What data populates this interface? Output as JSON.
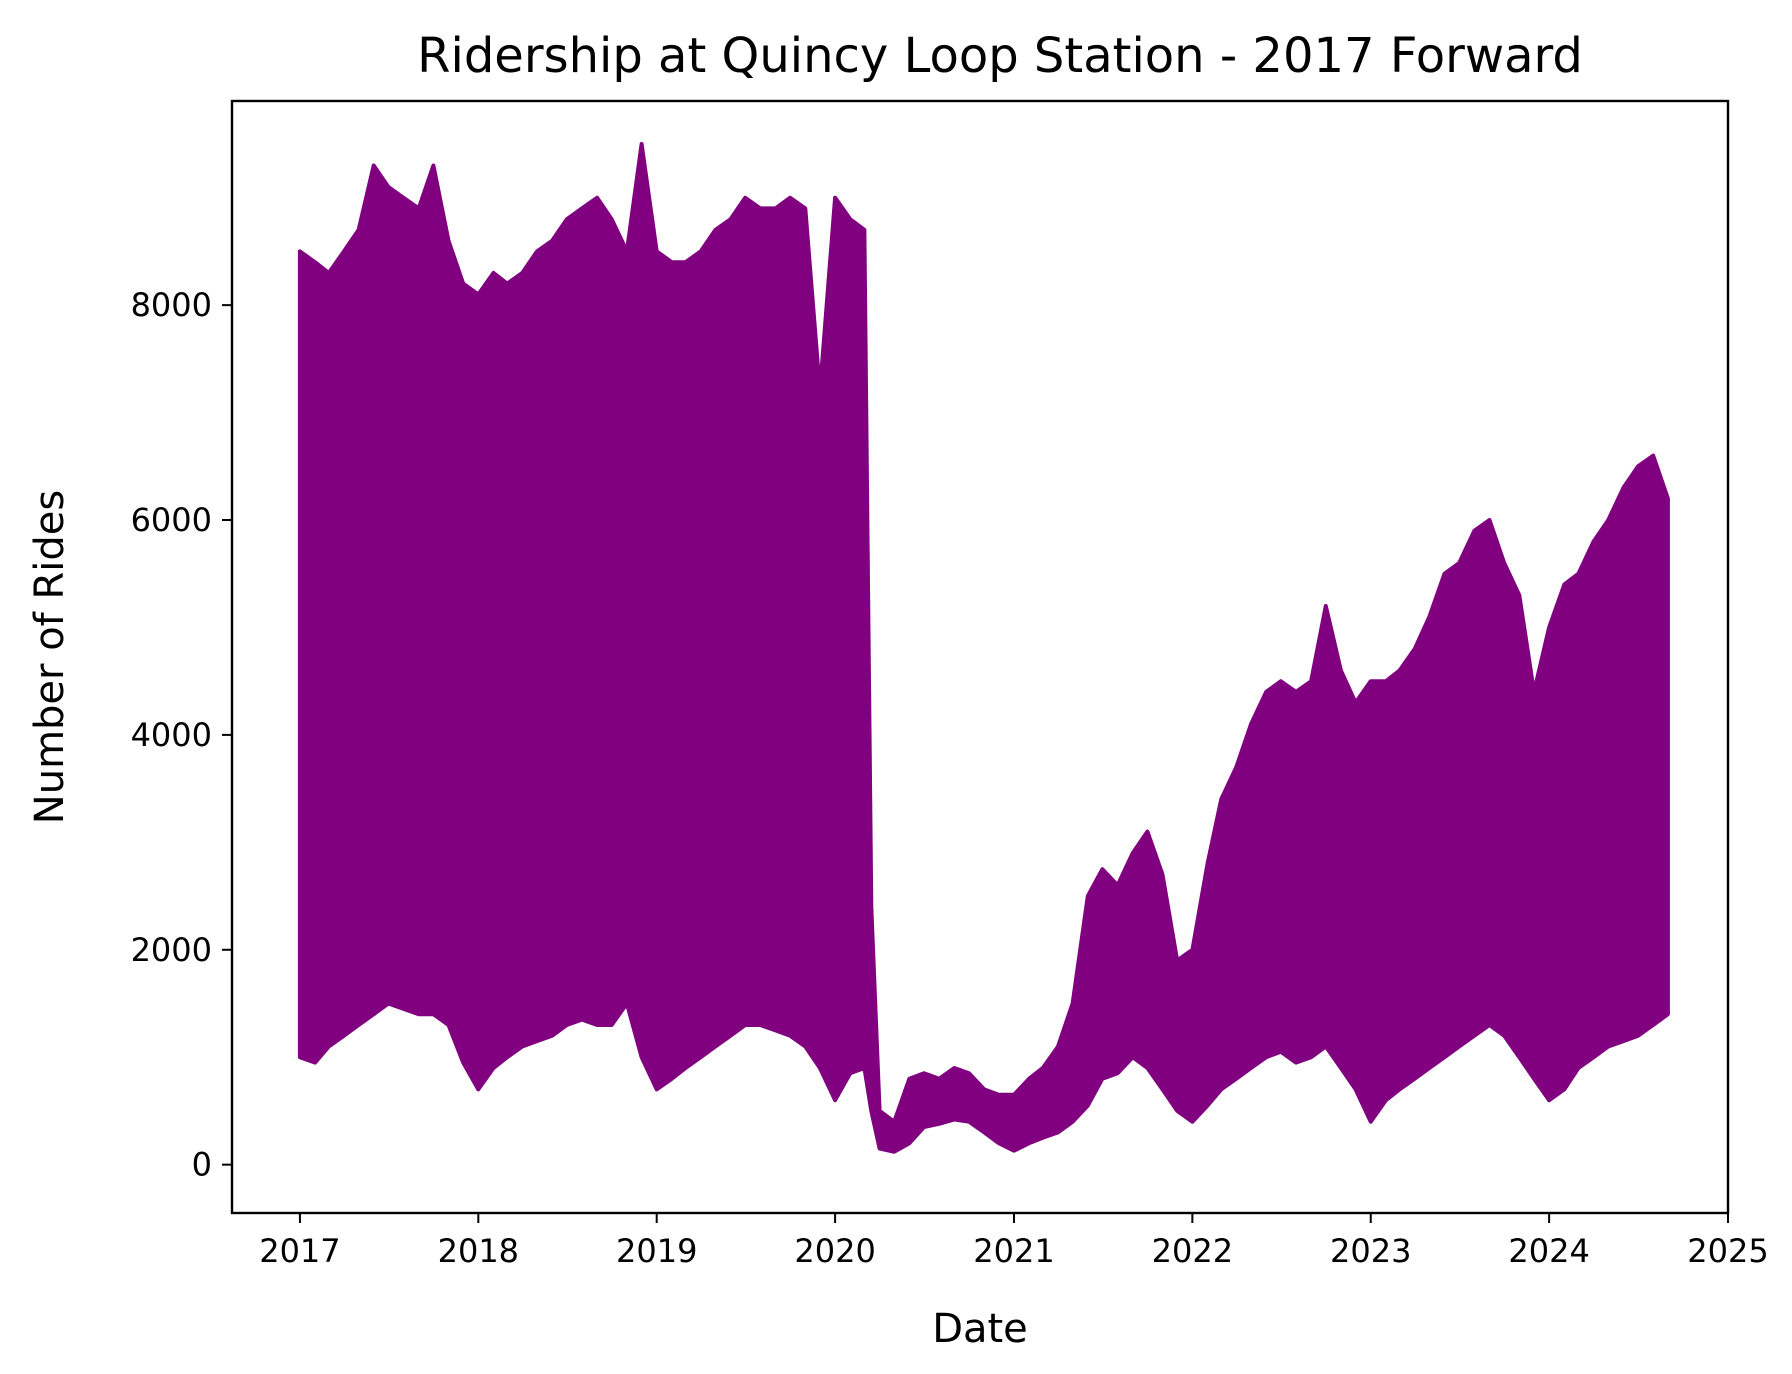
{
  "chart_data": {
    "type": "line",
    "title": "Ridership at Quincy Loop Station - 2017 Forward",
    "xlabel": "Date",
    "ylabel": "Number of Rides",
    "x_ticks": [
      "2017",
      "2018",
      "2019",
      "2020",
      "2021",
      "2022",
      "2023",
      "2024",
      "2025"
    ],
    "y_ticks": [
      0,
      2000,
      4000,
      6000,
      8000
    ],
    "xlim": [
      "2016-08-15",
      "2025-01-01"
    ],
    "ylim": [
      -450,
      9900
    ],
    "grid": false,
    "legend": "none",
    "color": "#800080",
    "series": [
      {
        "x": [
          "2017-01-01",
          "2017-02-01",
          "2017-03-01",
          "2017-04-01",
          "2017-05-01",
          "2017-06-01",
          "2017-07-01",
          "2017-08-01",
          "2017-09-01",
          "2017-10-01",
          "2017-11-01",
          "2017-12-01",
          "2018-01-01",
          "2018-02-01",
          "2018-03-01",
          "2018-04-01",
          "2018-05-01",
          "2018-06-01",
          "2018-07-01",
          "2018-08-01",
          "2018-09-01",
          "2018-10-01",
          "2018-11-01",
          "2018-12-01",
          "2019-01-01",
          "2019-02-01",
          "2019-03-01",
          "2019-04-01",
          "2019-05-01",
          "2019-06-01",
          "2019-07-01",
          "2019-08-01",
          "2019-09-01",
          "2019-10-01",
          "2019-11-01",
          "2019-12-01",
          "2020-01-01",
          "2020-02-01",
          "2020-03-01",
          "2020-03-15",
          "2020-04-01",
          "2020-05-01",
          "2020-06-01",
          "2020-07-01",
          "2020-08-01",
          "2020-09-01",
          "2020-10-01",
          "2020-11-01",
          "2020-12-01",
          "2021-01-01",
          "2021-02-01",
          "2021-03-01",
          "2021-04-01",
          "2021-05-01",
          "2021-06-01",
          "2021-07-01",
          "2021-08-01",
          "2021-09-01",
          "2021-10-01",
          "2021-11-01",
          "2021-12-01",
          "2022-01-01",
          "2022-02-01",
          "2022-03-01",
          "2022-04-01",
          "2022-05-01",
          "2022-06-01",
          "2022-07-01",
          "2022-08-01",
          "2022-09-01",
          "2022-10-01",
          "2022-11-01",
          "2022-12-01",
          "2023-01-01",
          "2023-02-01",
          "2023-03-01",
          "2023-04-01",
          "2023-05-01",
          "2023-06-01",
          "2023-07-01",
          "2023-08-01",
          "2023-09-01",
          "2023-10-01",
          "2023-11-01",
          "2023-12-01",
          "2024-01-01",
          "2024-02-01",
          "2024-03-01",
          "2024-04-01",
          "2024-05-01",
          "2024-06-01",
          "2024-07-01",
          "2024-08-01",
          "2024-08-31"
        ],
        "high": [
          8500,
          8400,
          8300,
          8500,
          8700,
          9300,
          9100,
          9000,
          8900,
          9300,
          8600,
          8200,
          8100,
          8300,
          8200,
          8300,
          8500,
          8600,
          8800,
          8900,
          9000,
          8800,
          8500,
          9500,
          8500,
          8400,
          8400,
          8500,
          8700,
          8800,
          9000,
          8900,
          8900,
          9000,
          8900,
          7200,
          9000,
          8800,
          8700,
          2400,
          500,
          400,
          800,
          850,
          800,
          900,
          850,
          700,
          650,
          650,
          800,
          900,
          1100,
          1500,
          2500,
          2750,
          2600,
          2900,
          3100,
          2700,
          1900,
          2000,
          2800,
          3400,
          3700,
          4100,
          4400,
          4500,
          4400,
          4500,
          5200,
          4600,
          4300,
          4500,
          4500,
          4600,
          4800,
          5100,
          5500,
          5600,
          5900,
          6000,
          5600,
          5300,
          4400,
          5000,
          5400,
          5500,
          5800,
          6000,
          6300,
          6500,
          6600,
          6200
        ],
        "low": [
          1000,
          950,
          1100,
          1200,
          1300,
          1400,
          1500,
          1450,
          1400,
          1400,
          1300,
          950,
          700,
          900,
          1000,
          1100,
          1150,
          1200,
          1300,
          1350,
          1300,
          1300,
          1500,
          1000,
          700,
          800,
          900,
          1000,
          1100,
          1200,
          1300,
          1300,
          1250,
          1200,
          1100,
          900,
          600,
          850,
          900,
          500,
          150,
          120,
          200,
          350,
          380,
          420,
          400,
          300,
          200,
          130,
          200,
          250,
          300,
          400,
          550,
          800,
          850,
          1000,
          900,
          700,
          500,
          400,
          550,
          700,
          800,
          900,
          1000,
          1050,
          950,
          1000,
          1100,
          900,
          700,
          400,
          600,
          700,
          800,
          900,
          1000,
          1100,
          1200,
          1300,
          1200,
          1000,
          800,
          600,
          700,
          900,
          1000,
          1100,
          1150,
          1200,
          1300,
          1400
        ]
      }
    ]
  }
}
